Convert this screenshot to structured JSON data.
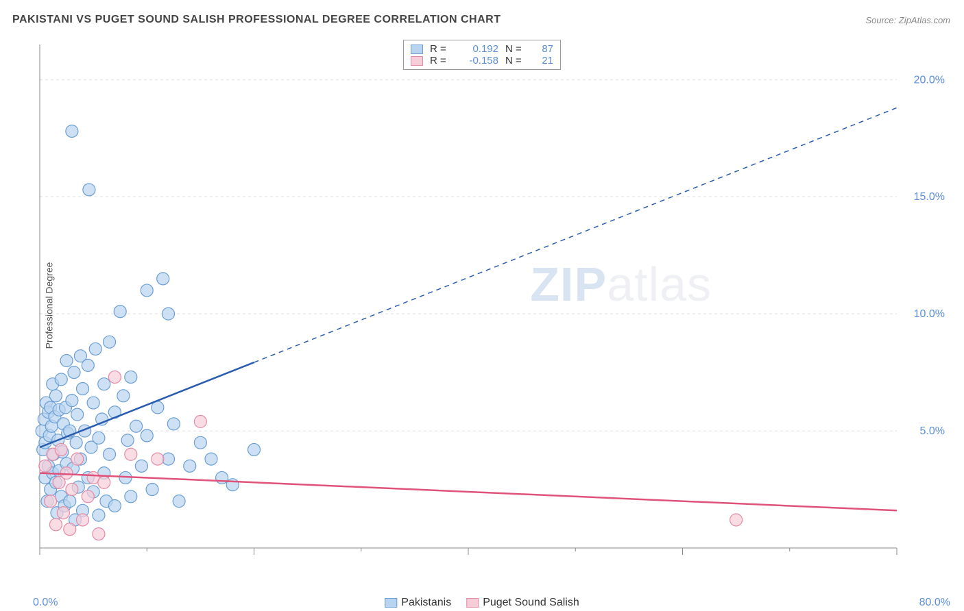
{
  "title": "PAKISTANI VS PUGET SOUND SALISH PROFESSIONAL DEGREE CORRELATION CHART",
  "source": "Source: ZipAtlas.com",
  "ylabel": "Professional Degree",
  "watermark": {
    "zip": "ZIP",
    "atlas": "atlas"
  },
  "chart": {
    "type": "scatter-with-regression",
    "background_color": "#ffffff",
    "grid_color": "#dddddd",
    "axis_color": "#888888",
    "xlim": [
      0,
      80
    ],
    "ylim": [
      0,
      21.5
    ],
    "x_ticks_major": [
      0,
      20,
      40,
      60,
      80
    ],
    "x_ticks_minor": [
      10,
      30,
      50,
      70
    ],
    "x_tick_labels": {
      "min": "0.0%",
      "max": "80.0%"
    },
    "y_gridlines": [
      5,
      10,
      15,
      20
    ],
    "y_tick_labels": [
      "5.0%",
      "10.0%",
      "15.0%",
      "20.0%"
    ],
    "tick_label_color": "#5b8dd6",
    "tick_label_fontsize": 16,
    "marker_radius": 9,
    "marker_stroke_width": 1.2,
    "series": [
      {
        "name": "Pakistanis",
        "fill_color": "#b9d4f0",
        "stroke_color": "#6a9ed4",
        "line_color": "#2a5db0",
        "R": "0.192",
        "N": "87",
        "regression": {
          "x1": 0,
          "y1": 4.3,
          "x2": 80,
          "y2": 18.8,
          "solid_until_x": 20
        },
        "points": [
          [
            0.2,
            5.0
          ],
          [
            0.3,
            4.2
          ],
          [
            0.4,
            5.5
          ],
          [
            0.5,
            3.0
          ],
          [
            0.5,
            4.5
          ],
          [
            0.6,
            6.2
          ],
          [
            0.7,
            2.0
          ],
          [
            0.8,
            5.8
          ],
          [
            0.8,
            3.5
          ],
          [
            0.9,
            4.8
          ],
          [
            1.0,
            6.0
          ],
          [
            1.0,
            2.5
          ],
          [
            1.1,
            5.2
          ],
          [
            1.2,
            3.2
          ],
          [
            1.2,
            7.0
          ],
          [
            1.3,
            4.0
          ],
          [
            1.4,
            5.6
          ],
          [
            1.5,
            2.8
          ],
          [
            1.5,
            6.5
          ],
          [
            1.6,
            1.5
          ],
          [
            1.7,
            4.6
          ],
          [
            1.8,
            3.3
          ],
          [
            1.8,
            5.9
          ],
          [
            2.0,
            2.2
          ],
          [
            2.0,
            7.2
          ],
          [
            2.1,
            4.1
          ],
          [
            2.2,
            5.3
          ],
          [
            2.3,
            1.8
          ],
          [
            2.4,
            6.0
          ],
          [
            2.5,
            3.6
          ],
          [
            2.5,
            8.0
          ],
          [
            2.6,
            4.9
          ],
          [
            2.8,
            2.0
          ],
          [
            2.8,
            5.0
          ],
          [
            3.0,
            17.8
          ],
          [
            3.0,
            6.3
          ],
          [
            3.1,
            3.4
          ],
          [
            3.2,
            7.5
          ],
          [
            3.3,
            1.2
          ],
          [
            3.4,
            4.5
          ],
          [
            3.5,
            5.7
          ],
          [
            3.6,
            2.6
          ],
          [
            3.8,
            8.2
          ],
          [
            3.8,
            3.8
          ],
          [
            4.0,
            6.8
          ],
          [
            4.0,
            1.6
          ],
          [
            4.2,
            5.0
          ],
          [
            4.5,
            7.8
          ],
          [
            4.5,
            3.0
          ],
          [
            4.6,
            15.3
          ],
          [
            4.8,
            4.3
          ],
          [
            5.0,
            6.2
          ],
          [
            5.0,
            2.4
          ],
          [
            5.2,
            8.5
          ],
          [
            5.5,
            4.7
          ],
          [
            5.5,
            1.4
          ],
          [
            5.8,
            5.5
          ],
          [
            6.0,
            7.0
          ],
          [
            6.0,
            3.2
          ],
          [
            6.2,
            2.0
          ],
          [
            6.5,
            8.8
          ],
          [
            6.5,
            4.0
          ],
          [
            7.0,
            5.8
          ],
          [
            7.0,
            1.8
          ],
          [
            7.5,
            10.1
          ],
          [
            7.8,
            6.5
          ],
          [
            8.0,
            3.0
          ],
          [
            8.2,
            4.6
          ],
          [
            8.5,
            7.3
          ],
          [
            8.5,
            2.2
          ],
          [
            9.0,
            5.2
          ],
          [
            9.5,
            3.5
          ],
          [
            10.0,
            11.0
          ],
          [
            10.0,
            4.8
          ],
          [
            10.5,
            2.5
          ],
          [
            11.0,
            6.0
          ],
          [
            11.5,
            11.5
          ],
          [
            12.0,
            3.8
          ],
          [
            12.0,
            10.0
          ],
          [
            12.5,
            5.3
          ],
          [
            13.0,
            2.0
          ],
          [
            14.0,
            3.5
          ],
          [
            15.0,
            4.5
          ],
          [
            16.0,
            3.8
          ],
          [
            17.0,
            3.0
          ],
          [
            18.0,
            2.7
          ],
          [
            20.0,
            4.2
          ]
        ]
      },
      {
        "name": "Puget Sound Salish",
        "fill_color": "#f7cdd9",
        "stroke_color": "#e48aa5",
        "line_color": "#e0527a",
        "R": "-0.158",
        "N": "21",
        "regression": {
          "x1": 0,
          "y1": 3.2,
          "x2": 80,
          "y2": 1.6,
          "solid_until_x": 80
        },
        "points": [
          [
            0.5,
            3.5
          ],
          [
            1.0,
            2.0
          ],
          [
            1.2,
            4.0
          ],
          [
            1.5,
            1.0
          ],
          [
            1.8,
            2.8
          ],
          [
            2.0,
            4.2
          ],
          [
            2.2,
            1.5
          ],
          [
            2.5,
            3.2
          ],
          [
            2.8,
            0.8
          ],
          [
            3.0,
            2.5
          ],
          [
            3.5,
            3.8
          ],
          [
            4.0,
            1.2
          ],
          [
            4.5,
            2.2
          ],
          [
            5.0,
            3.0
          ],
          [
            5.5,
            0.6
          ],
          [
            6.0,
            2.8
          ],
          [
            7.0,
            7.3
          ],
          [
            8.5,
            4.0
          ],
          [
            11.0,
            3.8
          ],
          [
            15.0,
            5.4
          ],
          [
            65.0,
            1.2
          ]
        ]
      }
    ]
  },
  "legend_bottom": [
    {
      "label": "Pakistanis",
      "fill": "#b9d4f0",
      "stroke": "#6a9ed4"
    },
    {
      "label": "Puget Sound Salish",
      "fill": "#f7cdd9",
      "stroke": "#e48aa5"
    }
  ]
}
